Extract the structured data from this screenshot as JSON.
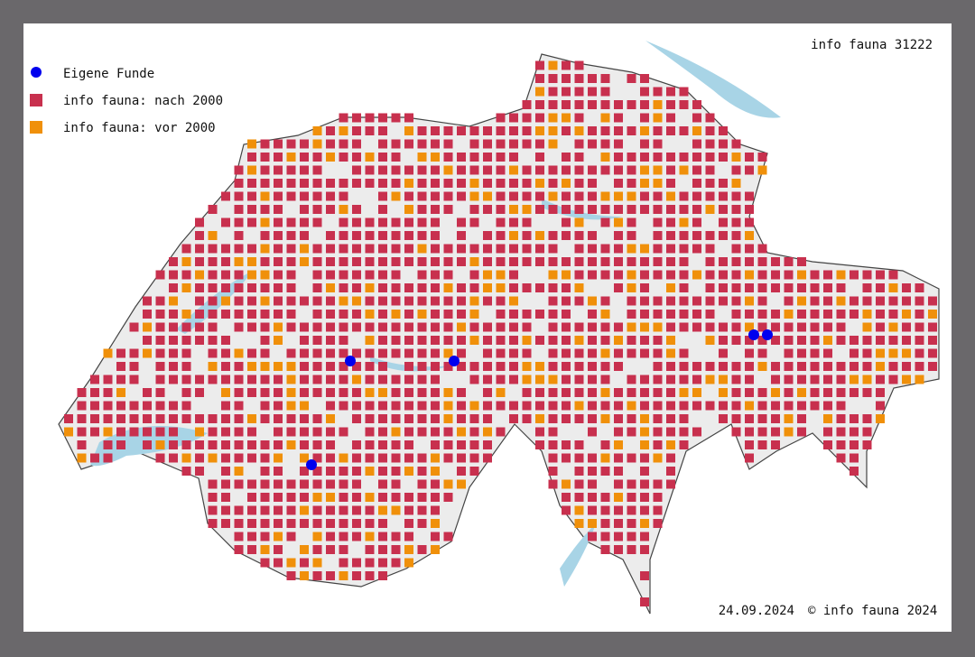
{
  "title": "info fauna 31222",
  "legend": [
    {
      "label": "Eigene Funde",
      "color": "#0000ee"
    },
    {
      "label": "info fauna: nach 2000",
      "color": "#c8304e"
    },
    {
      "label": "info fauna: vor 2000",
      "color": "#f0900a"
    }
  ],
  "footer": {
    "date": "24.09.2024",
    "copyright": "© info fauna 2024"
  }
}
